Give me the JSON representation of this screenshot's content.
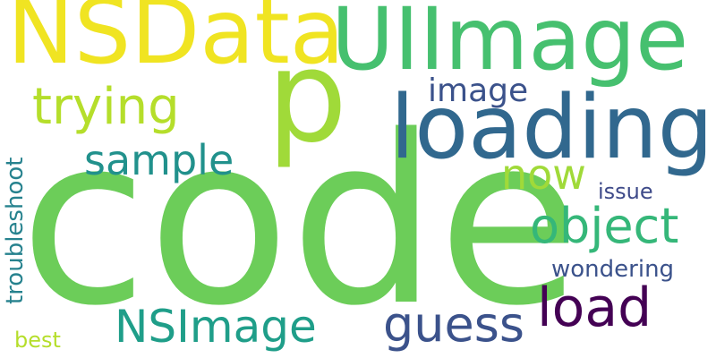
{
  "words": [
    {
      "text": "code",
      "color": "#6ccd59"
    },
    {
      "text": "NSData",
      "color": "#f0e422"
    },
    {
      "text": "UIImage",
      "color": "#46c06f"
    },
    {
      "text": "p",
      "color": "#a0da39"
    },
    {
      "text": "loading",
      "color": "#31688e"
    },
    {
      "text": "trying",
      "color": "#b5de2b"
    },
    {
      "text": "image",
      "color": "#3b528b"
    },
    {
      "text": "sample",
      "color": "#21918c"
    },
    {
      "text": "now",
      "color": "#a0da39"
    },
    {
      "text": "object",
      "color": "#35b779"
    },
    {
      "text": "issue",
      "color": "#3e4a89"
    },
    {
      "text": "troubleshoot",
      "color": "#26828e"
    },
    {
      "text": "wondering",
      "color": "#3b528b"
    },
    {
      "text": "load",
      "color": "#440154"
    },
    {
      "text": "guess",
      "color": "#3b528b"
    },
    {
      "text": "NSImage",
      "color": "#1f9e89"
    },
    {
      "text": "best",
      "color": "#b5de2b"
    }
  ]
}
